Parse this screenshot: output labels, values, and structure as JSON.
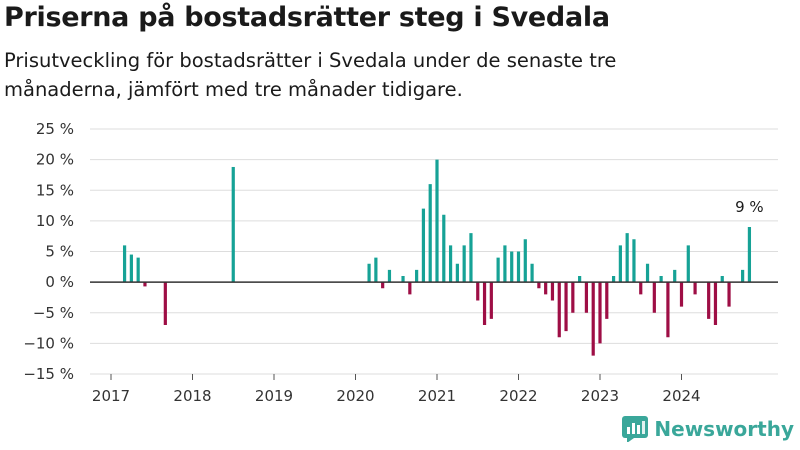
{
  "header": {
    "title": "Priserna på bostadsrätter steg i Svedala",
    "subtitle": "Prisutveckling för bostadsrätter i Svedala under de senaste tre månaderna, jämfört med tre månader tidigare."
  },
  "brand": {
    "name": "Newsworthy",
    "icon": "newsworthy-logo-icon"
  },
  "colors": {
    "positive": "#16a296",
    "negative": "#9e0e45",
    "zero_line": "#333333",
    "grid": "#dddddd"
  },
  "chart_data": {
    "type": "bar",
    "x_ticks": [
      "2017",
      "2018",
      "2019",
      "2020",
      "2021",
      "2022",
      "2023",
      "2024"
    ],
    "y_ticks": [
      "25 %",
      "20 %",
      "15 %",
      "10 %",
      "5 %",
      "0 %",
      "−5 %",
      "−10 %",
      "−15 %"
    ],
    "ylim": [
      -15,
      25
    ],
    "grid": true,
    "annotation": {
      "label": "9 %",
      "date": "2024-11"
    },
    "bars": [
      {
        "date": "2017-03",
        "value": 6
      },
      {
        "date": "2017-04",
        "value": 4.5
      },
      {
        "date": "2017-05",
        "value": 4
      },
      {
        "date": "2017-06",
        "value": -0.7
      },
      {
        "date": "2017-09",
        "value": -7
      },
      {
        "date": "2018-07",
        "value": 18.8
      },
      {
        "date": "2020-03",
        "value": 3
      },
      {
        "date": "2020-04",
        "value": 4
      },
      {
        "date": "2020-05",
        "value": -1
      },
      {
        "date": "2020-06",
        "value": 2
      },
      {
        "date": "2020-08",
        "value": 1
      },
      {
        "date": "2020-09",
        "value": -2
      },
      {
        "date": "2020-10",
        "value": 2
      },
      {
        "date": "2020-11",
        "value": 12
      },
      {
        "date": "2020-12",
        "value": 16
      },
      {
        "date": "2021-01",
        "value": 20
      },
      {
        "date": "2021-02",
        "value": 11
      },
      {
        "date": "2021-03",
        "value": 6
      },
      {
        "date": "2021-04",
        "value": 3
      },
      {
        "date": "2021-05",
        "value": 6
      },
      {
        "date": "2021-06",
        "value": 8
      },
      {
        "date": "2021-07",
        "value": -3
      },
      {
        "date": "2021-08",
        "value": -7
      },
      {
        "date": "2021-09",
        "value": -6
      },
      {
        "date": "2021-10",
        "value": 4
      },
      {
        "date": "2021-11",
        "value": 6
      },
      {
        "date": "2021-12",
        "value": 5
      },
      {
        "date": "2022-01",
        "value": 5
      },
      {
        "date": "2022-02",
        "value": 7
      },
      {
        "date": "2022-03",
        "value": 3
      },
      {
        "date": "2022-04",
        "value": -1
      },
      {
        "date": "2022-05",
        "value": -2
      },
      {
        "date": "2022-06",
        "value": -3
      },
      {
        "date": "2022-07",
        "value": -9
      },
      {
        "date": "2022-08",
        "value": -8
      },
      {
        "date": "2022-09",
        "value": -5
      },
      {
        "date": "2022-10",
        "value": 1
      },
      {
        "date": "2022-11",
        "value": -5
      },
      {
        "date": "2022-12",
        "value": -12
      },
      {
        "date": "2023-01",
        "value": -10
      },
      {
        "date": "2023-02",
        "value": -6
      },
      {
        "date": "2023-03",
        "value": 1
      },
      {
        "date": "2023-04",
        "value": 6
      },
      {
        "date": "2023-05",
        "value": 8
      },
      {
        "date": "2023-06",
        "value": 7
      },
      {
        "date": "2023-07",
        "value": -2
      },
      {
        "date": "2023-08",
        "value": 3
      },
      {
        "date": "2023-09",
        "value": -5
      },
      {
        "date": "2023-10",
        "value": 1
      },
      {
        "date": "2023-11",
        "value": -9
      },
      {
        "date": "2023-12",
        "value": 2
      },
      {
        "date": "2024-01",
        "value": -4
      },
      {
        "date": "2024-02",
        "value": 6
      },
      {
        "date": "2024-03",
        "value": -2
      },
      {
        "date": "2024-05",
        "value": -6
      },
      {
        "date": "2024-06",
        "value": -7
      },
      {
        "date": "2024-07",
        "value": 1
      },
      {
        "date": "2024-08",
        "value": -4
      },
      {
        "date": "2024-10",
        "value": 2
      },
      {
        "date": "2024-11",
        "value": 9
      }
    ]
  }
}
